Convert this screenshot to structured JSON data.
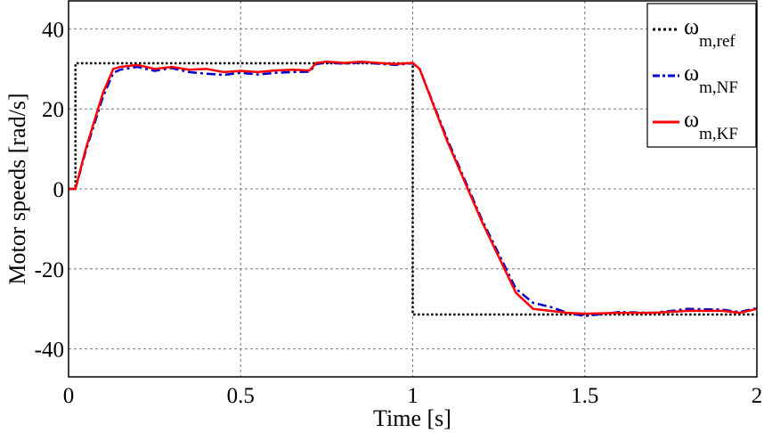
{
  "chart_data": {
    "type": "line",
    "title": "",
    "xlabel": "Time [s]",
    "ylabel": "Motor speeds [rad/s]",
    "xlim": [
      0,
      2
    ],
    "ylim": [
      -47,
      47
    ],
    "xticks": [
      0,
      0.5,
      1,
      1.5,
      2
    ],
    "xtick_labels": [
      "0",
      "0.5",
      "1",
      "1.5",
      "2"
    ],
    "yticks": [
      40,
      20,
      0,
      -20,
      -40
    ],
    "ytick_labels": [
      "40",
      "20",
      "0",
      "-20",
      "-40"
    ],
    "grid": true,
    "legend_position": "top-right",
    "series": [
      {
        "name": "ω",
        "sub": "m,ref",
        "color": "#000000",
        "style": "dotted",
        "x": [
          0,
          0.02,
          0.02,
          1.0,
          1.0,
          2.0
        ],
        "y": [
          0,
          0,
          31.4,
          31.4,
          -31.4,
          -31.4
        ]
      },
      {
        "name": "ω",
        "sub": "m,NF",
        "color": "#0000cc",
        "style": "dashdot",
        "x": [
          0,
          0.02,
          0.05,
          0.1,
          0.13,
          0.15,
          0.2,
          0.25,
          0.3,
          0.35,
          0.4,
          0.45,
          0.5,
          0.55,
          0.6,
          0.65,
          0.7,
          0.72,
          0.75,
          0.8,
          0.85,
          0.9,
          0.95,
          1.0,
          1.02,
          1.1,
          1.2,
          1.3,
          1.35,
          1.4,
          1.45,
          1.5,
          1.6,
          1.7,
          1.8,
          1.9,
          1.95,
          2.0
        ],
        "y": [
          0,
          0,
          9.5,
          23,
          29,
          29.8,
          30.5,
          29.5,
          30.2,
          29.2,
          28.8,
          28.5,
          29,
          28.6,
          29,
          29.2,
          29.3,
          31.2,
          31.6,
          31.3,
          31.6,
          31.3,
          31,
          31.4,
          30,
          12.5,
          -7.5,
          -25,
          -28.5,
          -29.5,
          -31,
          -31.8,
          -30.8,
          -31,
          -30,
          -30.2,
          -30.8,
          -29.8
        ]
      },
      {
        "name": "ω",
        "sub": "m,KF",
        "color": "#ff0000",
        "style": "solid",
        "x": [
          0,
          0.02,
          0.05,
          0.1,
          0.13,
          0.15,
          0.2,
          0.25,
          0.3,
          0.35,
          0.4,
          0.45,
          0.5,
          0.55,
          0.6,
          0.65,
          0.7,
          0.72,
          0.75,
          0.8,
          0.85,
          0.9,
          0.95,
          1.0,
          1.02,
          1.1,
          1.2,
          1.3,
          1.35,
          1.4,
          1.45,
          1.5,
          1.6,
          1.7,
          1.8,
          1.9,
          1.95,
          2.0
        ],
        "y": [
          0,
          0,
          10,
          24,
          30,
          30.5,
          31,
          30,
          30.5,
          29.8,
          30,
          29.2,
          29.5,
          29.2,
          29.6,
          29.8,
          29.6,
          31.5,
          31.8,
          31.5,
          31.8,
          31.5,
          31.2,
          31.5,
          30,
          12,
          -8,
          -26,
          -30,
          -30.5,
          -31,
          -31.2,
          -31,
          -31,
          -30.5,
          -30.5,
          -31,
          -30
        ]
      }
    ]
  }
}
